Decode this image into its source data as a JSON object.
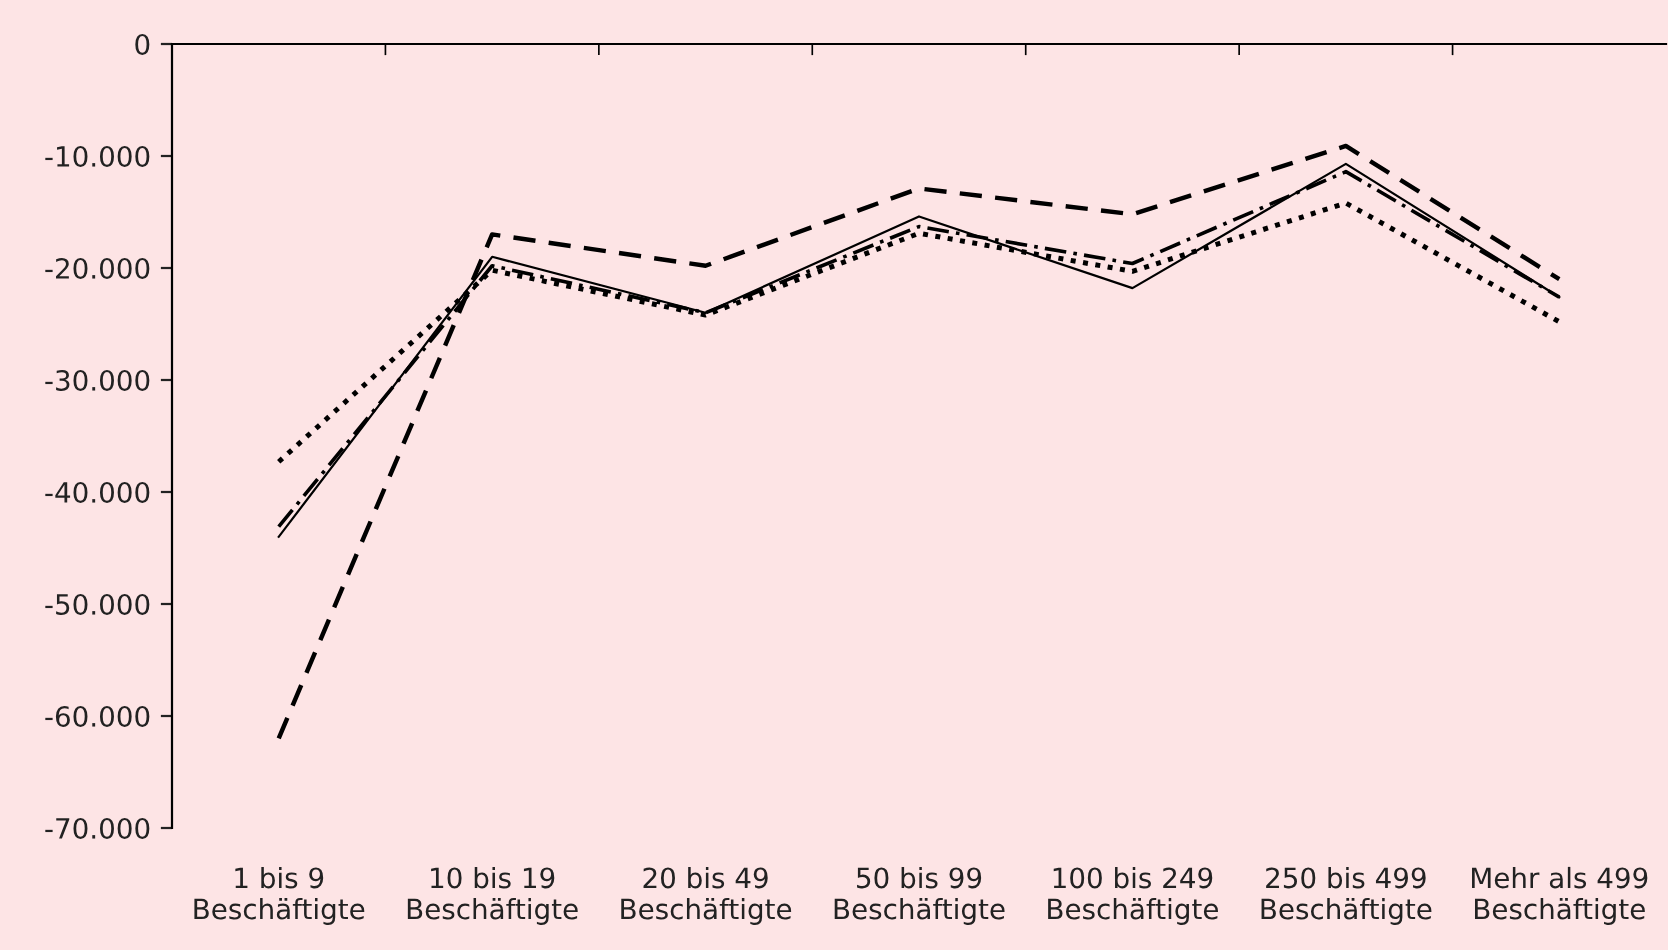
{
  "chart_data": {
    "type": "line",
    "categories": [
      "1 bis 9\nBeschäftigte",
      "10 bis 19\nBeschäftigte",
      "20 bis 49\nBeschäftigte",
      "50 bis 99\nBeschäftigte",
      "100 bis 249\nBeschäftigte",
      "250 bis 499\nBeschäftigte",
      "Mehr als 499\nBeschäftigte"
    ],
    "series": [
      {
        "color": "#000000",
        "line_style": "solid",
        "values": [
          -44000,
          -19000,
          -24000,
          -15400,
          -21800,
          -10700,
          -22600
        ]
      },
      {
        "color": "#000000",
        "line_style": "dashed",
        "values": [
          -62000,
          -17000,
          -19800,
          -12900,
          -15200,
          -9100,
          -21000
        ]
      },
      {
        "color": "#000000",
        "line_style": "dotted",
        "values": [
          -37300,
          -20200,
          -24200,
          -16900,
          -20300,
          -14200,
          -24800
        ]
      },
      {
        "color": "#000000",
        "line_style": "dashdot",
        "values": [
          -43100,
          -19800,
          -24000,
          -16300,
          -19600,
          -11400,
          -22600
        ]
      }
    ],
    "ylim": [
      -70000,
      0
    ],
    "yticks": [
      {
        "value": -70000,
        "label": "-70.000"
      },
      {
        "value": -60000,
        "label": "-60.000"
      },
      {
        "value": -50000,
        "label": "-50.000"
      },
      {
        "value": -40000,
        "label": "-40.000"
      },
      {
        "value": -30000,
        "label": "-30.000"
      },
      {
        "value": -20000,
        "label": "-20.000"
      },
      {
        "value": -10000,
        "label": "-10.000"
      },
      0
    ],
    "grid": false,
    "marker": "none"
  }
}
